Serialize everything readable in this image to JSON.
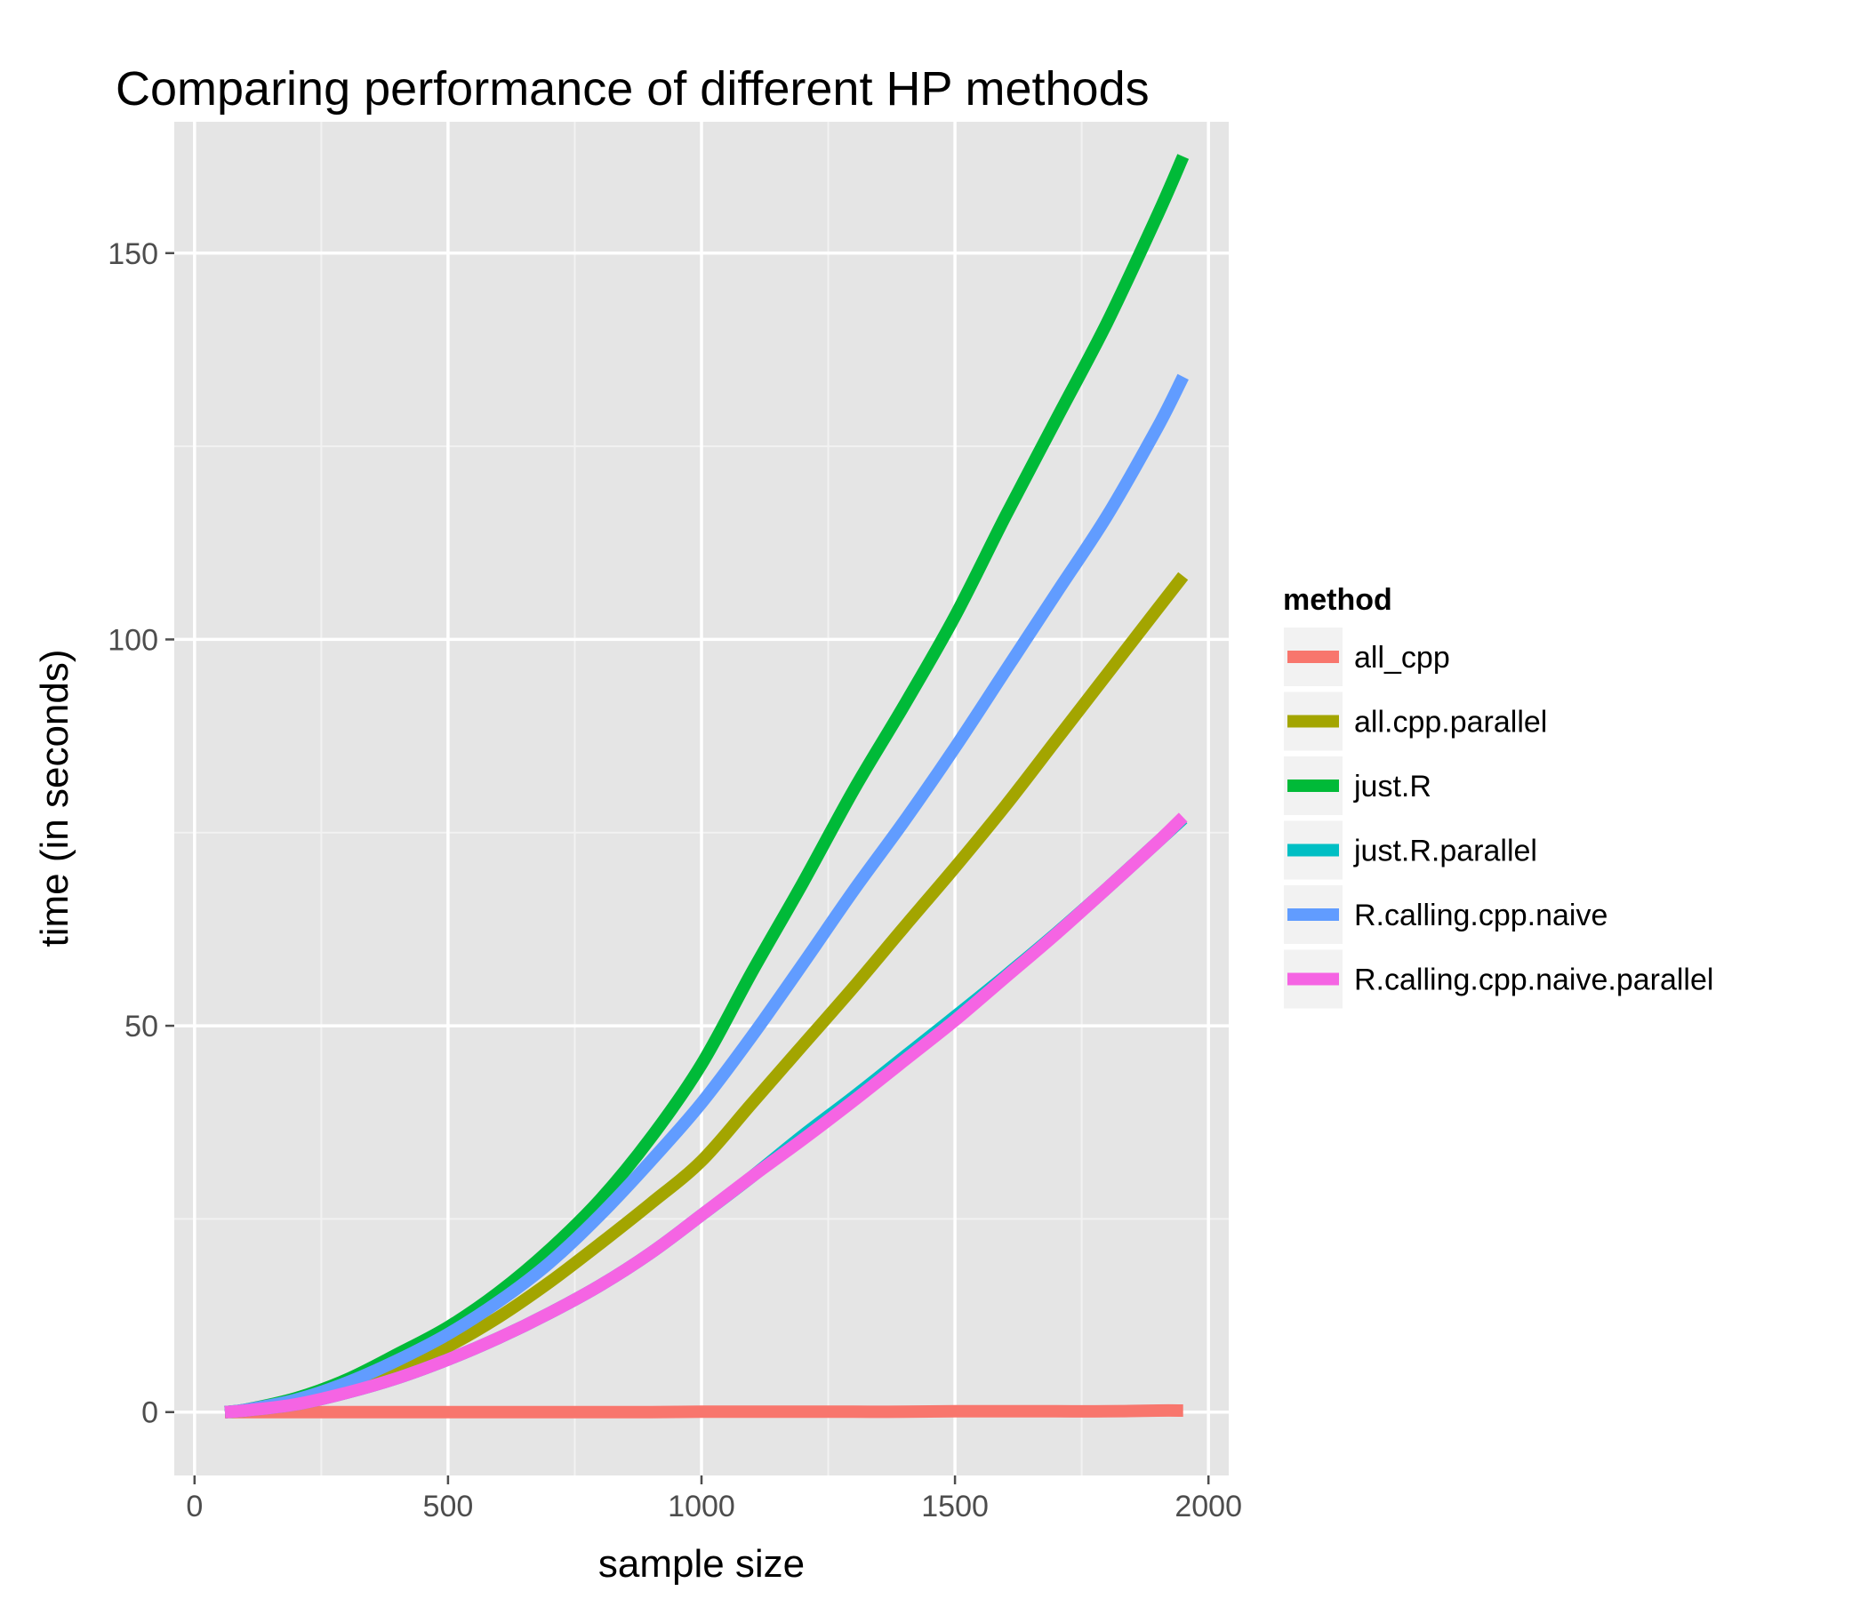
{
  "chart_data": {
    "type": "line",
    "title": "Comparing performance of different HP methods",
    "xlabel": "sample size",
    "ylabel": "time (in seconds)",
    "xlim": [
      -40,
      2040
    ],
    "ylim": [
      -8.2,
      167
    ],
    "x_ticks": [
      0,
      500,
      1000,
      1500,
      2000
    ],
    "x_tick_labels": [
      "0",
      "500",
      "1000",
      "1500",
      "2000"
    ],
    "y_ticks": [
      0,
      50,
      100,
      150
    ],
    "y_tick_labels": [
      "0",
      "50",
      "100",
      "150"
    ],
    "grid": true,
    "legend_title": "method",
    "legend_position": "right",
    "x": [
      60,
      100,
      200,
      300,
      400,
      500,
      600,
      700,
      800,
      900,
      1000,
      1100,
      1200,
      1300,
      1400,
      1500,
      1600,
      1700,
      1800,
      1900,
      1950
    ],
    "series": [
      {
        "name": "all_cpp",
        "color": "#F8766D",
        "values": [
          0,
          0,
          0,
          0,
          0,
          0,
          0,
          0,
          0,
          0,
          0.05,
          0.05,
          0.05,
          0.05,
          0.05,
          0.1,
          0.1,
          0.1,
          0.1,
          0.2,
          0.2
        ]
      },
      {
        "name": "all.cpp.parallel",
        "color": "#A3A500",
        "values": [
          0,
          0.2,
          1.2,
          3.0,
          5.5,
          8.5,
          12.3,
          16.8,
          21.8,
          27.0,
          32.5,
          40.0,
          47.5,
          55.0,
          62.8,
          70.5,
          78.5,
          87.0,
          95.5,
          104.0,
          108.2
        ]
      },
      {
        "name": "just.R",
        "color": "#00BA38",
        "values": [
          0,
          0.3,
          1.8,
          4.2,
          7.5,
          11.0,
          15.5,
          21.0,
          27.5,
          35.5,
          45.0,
          57.0,
          68.5,
          80.5,
          91.5,
          103.0,
          116.0,
          128.5,
          141.0,
          155.0,
          162.5
        ]
      },
      {
        "name": "just.R.parallel",
        "color": "#00BFC4",
        "values": [
          0,
          0.2,
          1.0,
          2.5,
          4.4,
          6.8,
          9.6,
          12.8,
          16.4,
          20.6,
          25.5,
          30.5,
          35.8,
          40.8,
          46.0,
          51.2,
          56.5,
          62.0,
          67.8,
          73.8,
          76.8
        ]
      },
      {
        "name": "R.calling.cpp.naive",
        "color": "#619CFF",
        "values": [
          0,
          0.3,
          1.6,
          3.8,
          6.7,
          10.1,
          14.3,
          19.3,
          25.5,
          32.5,
          40.0,
          48.7,
          58.0,
          67.5,
          76.5,
          86.0,
          96.0,
          106.0,
          116.0,
          127.5,
          134.0
        ]
      },
      {
        "name": "R.calling.cpp.naive.parallel",
        "color": "#F564E3",
        "values": [
          0,
          0.2,
          1.0,
          2.5,
          4.4,
          6.8,
          9.6,
          12.8,
          16.4,
          20.6,
          25.5,
          30.5,
          35.3,
          40.3,
          45.5,
          50.7,
          56.3,
          61.9,
          67.8,
          73.8,
          77.0
        ]
      }
    ]
  }
}
